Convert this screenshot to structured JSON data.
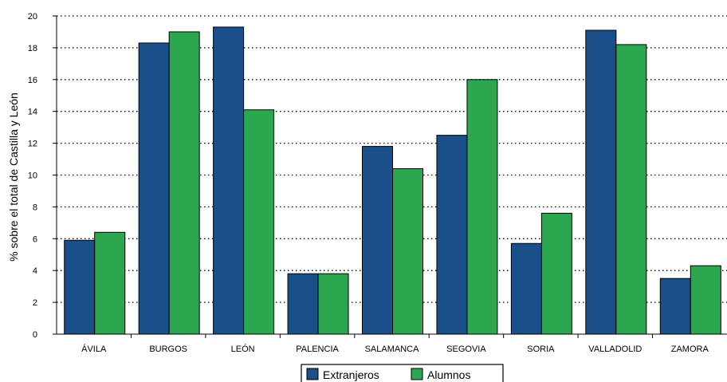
{
  "chart_data": {
    "type": "bar",
    "title": "",
    "xlabel": "",
    "ylabel": "% sobre el total de Castilla y León",
    "ylim": [
      0,
      20
    ],
    "yticks": [
      0,
      2,
      4,
      6,
      8,
      10,
      12,
      14,
      16,
      18,
      20
    ],
    "grid": "horizontal-dotted",
    "legend": "bottom-center",
    "categories": [
      "ÁVILA",
      "BURGOS",
      "LEÓN",
      "PALENCIA",
      "SALAMANCA",
      "SEGOVIA",
      "SORIA",
      "VALLADOLID",
      "ZAMORA"
    ],
    "series": [
      {
        "name": "Extranjeros",
        "color": "#1a4f8a",
        "values": [
          5.9,
          18.3,
          19.3,
          3.8,
          11.8,
          12.5,
          5.7,
          19.1,
          3.5
        ]
      },
      {
        "name": "Alumnos",
        "color": "#2ca64f",
        "values": [
          6.4,
          19.0,
          14.1,
          3.8,
          10.4,
          16.0,
          7.6,
          18.2,
          4.3
        ]
      }
    ]
  }
}
